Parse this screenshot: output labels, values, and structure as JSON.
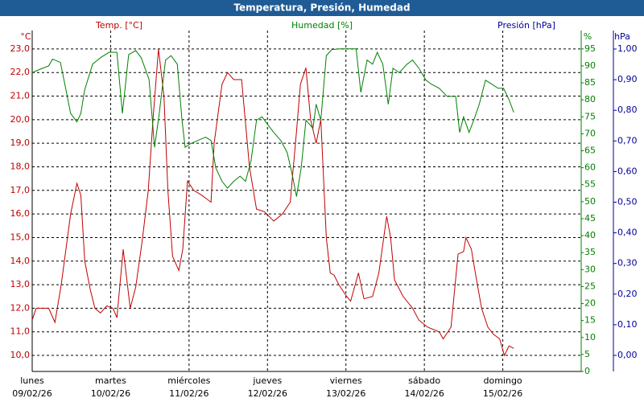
{
  "chart_data": {
    "type": "line",
    "title": "Temperatura, Presión, Humedad",
    "y_label": "Temp. [°C]",
    "y_unit": "°C",
    "y2_label": "Humedad [%]",
    "y2_unit": "%",
    "y3_label": "Presión [hPa]",
    "y3_unit": "hPa",
    "xlim": [
      0,
      7.0
    ],
    "xticks": [
      {
        "value": 0,
        "label": "lunes",
        "date": "09/02/26"
      },
      {
        "value": 1,
        "label": "martes",
        "date": "10/02/26"
      },
      {
        "value": 2,
        "label": "miércoles",
        "date": "11/02/26"
      },
      {
        "value": 3,
        "label": "jueves",
        "date": "12/02/26"
      },
      {
        "value": 4,
        "label": "viernes",
        "date": "13/02/26"
      },
      {
        "value": 5,
        "label": "sábado",
        "date": "14/02/26"
      },
      {
        "value": 6,
        "label": "domingo",
        "date": "15/02/26"
      }
    ],
    "ylim": [
      9.32,
      23.78
    ],
    "yticks": [
      {
        "value": 10,
        "label": "10,0"
      },
      {
        "value": 11,
        "label": "11,0"
      },
      {
        "value": 12,
        "label": "12,0"
      },
      {
        "value": 13,
        "label": "13,0"
      },
      {
        "value": 14,
        "label": "14,0"
      },
      {
        "value": 15,
        "label": "15,0"
      },
      {
        "value": 16,
        "label": "16,0"
      },
      {
        "value": 17,
        "label": "17,0"
      },
      {
        "value": 18,
        "label": "18,0"
      },
      {
        "value": 19,
        "label": "19,0"
      },
      {
        "value": 20,
        "label": "20,0"
      },
      {
        "value": 21,
        "label": "21,0"
      },
      {
        "value": 22,
        "label": "22,0"
      },
      {
        "value": 23,
        "label": "23,0"
      }
    ],
    "y2lim": [
      0,
      100.4
    ],
    "y2ticks": [
      0,
      5,
      10,
      15,
      20,
      25,
      30,
      35,
      40,
      45,
      50,
      55,
      60,
      65,
      70,
      75,
      80,
      85,
      90,
      95
    ],
    "y3lim": [
      -0.0525,
      1.0604
    ],
    "y3ticks": [
      {
        "value": 0,
        "label": "0,00"
      },
      {
        "value": 0.1,
        "label": "0,10"
      },
      {
        "value": 0.2,
        "label": "0,20"
      },
      {
        "value": 0.3,
        "label": "0,30"
      },
      {
        "value": 0.4,
        "label": "0,40"
      },
      {
        "value": 0.5,
        "label": "0,50"
      },
      {
        "value": 0.6,
        "label": "0,60"
      },
      {
        "value": 0.7,
        "label": "0,70"
      },
      {
        "value": 0.8,
        "label": "0,80"
      },
      {
        "value": 0.9,
        "label": "0,90"
      },
      {
        "value": 1,
        "label": "1,00"
      }
    ],
    "y_color": "#c00000",
    "y2_color": "#008000",
    "y3_color": "#000099",
    "grid": true,
    "series": [
      {
        "name": "Temp. [°C]",
        "color": "#c00000",
        "axis": "y",
        "x": [
          0.0,
          0.05,
          0.21,
          0.29,
          0.37,
          0.49,
          0.57,
          0.62,
          0.67,
          0.74,
          0.8,
          0.87,
          0.95,
          1.03,
          1.08,
          1.16,
          1.25,
          1.32,
          1.4,
          1.48,
          1.54,
          1.61,
          1.68,
          1.73,
          1.79,
          1.87,
          1.92,
          1.98,
          2.06,
          2.16,
          2.28,
          2.32,
          2.42,
          2.49,
          2.57,
          2.67,
          2.77,
          2.86,
          2.96,
          3.08,
          3.19,
          3.29,
          3.37,
          3.42,
          3.49,
          3.55,
          3.62,
          3.68,
          3.75,
          3.8,
          3.85,
          3.91,
          4.01,
          4.06,
          4.16,
          4.23,
          4.34,
          4.42,
          4.52,
          4.57,
          4.62,
          4.73,
          4.85,
          4.93,
          5.04,
          5.19,
          5.24,
          5.34,
          5.43,
          5.5,
          5.53,
          5.6,
          5.65,
          5.73,
          5.81,
          5.88,
          5.96,
          6.02,
          6.08,
          6.14
        ],
        "values": [
          11.5,
          12.0,
          12.0,
          11.4,
          13.0,
          16.0,
          17.3,
          16.8,
          14.0,
          12.8,
          12.0,
          11.8,
          12.1,
          12.0,
          11.6,
          14.5,
          12.0,
          12.9,
          14.8,
          17.0,
          20.0,
          23.0,
          21.0,
          17.0,
          14.2,
          13.6,
          14.5,
          17.4,
          17.0,
          16.8,
          16.5,
          19.0,
          21.5,
          22.0,
          21.7,
          21.7,
          18.0,
          16.2,
          16.1,
          15.7,
          16.0,
          16.5,
          19.5,
          21.5,
          22.2,
          20.0,
          19.0,
          20.0,
          15.0,
          13.5,
          13.4,
          13.0,
          12.5,
          12.3,
          13.5,
          12.4,
          12.5,
          13.5,
          15.9,
          15.0,
          13.2,
          12.5,
          12.0,
          11.5,
          11.2,
          11.0,
          10.7,
          11.2,
          14.3,
          14.4,
          15.0,
          14.5,
          13.5,
          12.0,
          11.2,
          10.9,
          10.7,
          10.0,
          10.4,
          10.3
        ]
      },
      {
        "name": "Humedad [%]",
        "color": "#008000",
        "axis": "y2",
        "x": [
          0.0,
          0.1,
          0.21,
          0.26,
          0.36,
          0.43,
          0.49,
          0.57,
          0.62,
          0.67,
          0.77,
          0.87,
          0.98,
          1.08,
          1.15,
          1.23,
          1.32,
          1.39,
          1.49,
          1.56,
          1.62,
          1.7,
          1.77,
          1.85,
          1.91,
          1.95,
          2.01,
          2.11,
          2.21,
          2.28,
          2.34,
          2.42,
          2.49,
          2.57,
          2.65,
          2.72,
          2.79,
          2.86,
          2.93,
          3.0,
          3.08,
          3.17,
          3.25,
          3.31,
          3.37,
          3.43,
          3.49,
          3.58,
          3.62,
          3.68,
          3.75,
          3.82,
          3.93,
          4.13,
          4.19,
          4.27,
          4.34,
          4.4,
          4.47,
          4.54,
          4.6,
          4.68,
          4.78,
          4.85,
          4.93,
          5.02,
          5.09,
          5.19,
          5.29,
          5.4,
          5.45,
          5.5,
          5.57,
          5.63,
          5.7,
          5.78,
          5.86,
          5.94,
          6.01,
          6.08,
          6.14
        ],
        "values": [
          88,
          89,
          90,
          92,
          91,
          83,
          76,
          73.5,
          76,
          83,
          90.5,
          92.4,
          94,
          94,
          76,
          93.3,
          94.5,
          92.4,
          86,
          66,
          76,
          91.7,
          93,
          90.5,
          74,
          66,
          67,
          68,
          69,
          68,
          60,
          56,
          54,
          56,
          57.5,
          56,
          62,
          74,
          75,
          72.8,
          70.4,
          68,
          64.5,
          58.6,
          51.5,
          60,
          74,
          71.6,
          78.7,
          74,
          93,
          94.8,
          95,
          95,
          82.2,
          91.7,
          90.5,
          94,
          90.5,
          78.7,
          89.3,
          88,
          90.5,
          91.7,
          89.3,
          85.8,
          84.6,
          83.4,
          81,
          81,
          70.4,
          75,
          70.4,
          74,
          78.7,
          85.8,
          84.6,
          83.4,
          83.4,
          80,
          76.3
        ]
      }
    ]
  }
}
